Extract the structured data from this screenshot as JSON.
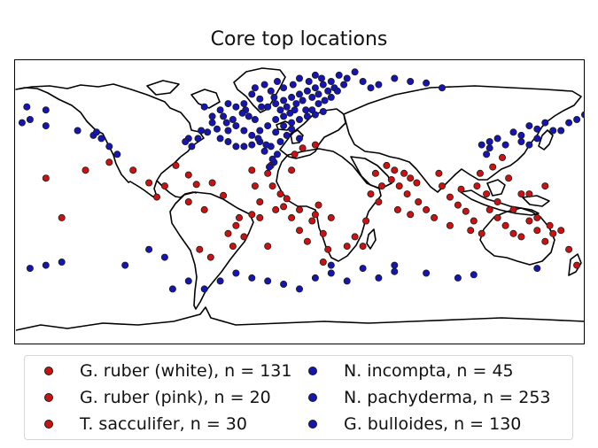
{
  "title": "Core top locations",
  "colors": {
    "warm": "#cc1111",
    "cold": "#1515b5",
    "edge": "#1a1a1a"
  },
  "legend": [
    {
      "label": "G. ruber (white), n = 131",
      "color": "#cc1111"
    },
    {
      "label": "G. ruber (pink), n = 20",
      "color": "#cc1111"
    },
    {
      "label": "T. sacculifer, n = 30",
      "color": "#cc1111"
    },
    {
      "label": "N. incompta, n = 45",
      "color": "#1515b5"
    },
    {
      "label": "N. pachyderma, n = 253",
      "color": "#1515b5"
    },
    {
      "label": "G. bulloides, n = 130",
      "color": "#1515b5"
    }
  ],
  "chart_data": {
    "type": "scatter",
    "projection": "plate-carree",
    "xlim": [
      -180,
      180
    ],
    "ylim": [
      -90,
      90
    ],
    "series": [
      {
        "name": "G. ruber (white), n = 131",
        "color": "#cc1111",
        "points": [
          [
            -78,
            23
          ],
          [
            -70,
            17
          ],
          [
            -65,
            11
          ],
          [
            -55,
            12
          ],
          [
            -48,
            4
          ],
          [
            -38,
            -10
          ],
          [
            -35,
            -22
          ],
          [
            -42,
            -28
          ],
          [
            -56,
            -35
          ],
          [
            -63,
            -30
          ],
          [
            -20,
            18
          ],
          [
            -17,
            10
          ],
          [
            -18,
            23
          ],
          [
            -12,
            5
          ],
          [
            -10,
            -3
          ],
          [
            -5,
            -10
          ],
          [
            0,
            -18
          ],
          [
            5,
            -25
          ],
          [
            8,
            -12
          ],
          [
            12,
            -2
          ],
          [
            15,
            -20
          ],
          [
            18,
            -30
          ],
          [
            30,
            -28
          ],
          [
            35,
            -22
          ],
          [
            42,
            -12
          ],
          [
            48,
            18
          ],
          [
            55,
            23
          ],
          [
            60,
            20
          ],
          [
            63,
            10
          ],
          [
            66,
            18
          ],
          [
            70,
            15
          ],
          [
            74,
            12
          ],
          [
            88,
            18
          ],
          [
            90,
            10
          ],
          [
            95,
            3
          ],
          [
            100,
            -2
          ],
          [
            105,
            -6
          ],
          [
            110,
            -12
          ],
          [
            112,
            10
          ],
          [
            114,
            18
          ],
          [
            118,
            5
          ],
          [
            120,
            -5
          ],
          [
            125,
            -10
          ],
          [
            130,
            -15
          ],
          [
            135,
            -20
          ],
          [
            140,
            -22
          ],
          [
            145,
            -12
          ],
          [
            150,
            -18
          ],
          [
            155,
            -25
          ],
          [
            160,
            -20
          ],
          [
            170,
            -30
          ],
          [
            -135,
            20
          ],
          [
            -120,
            25
          ],
          [
            -105,
            20
          ],
          [
            -95,
            12
          ],
          [
            -90,
            3
          ]
        ]
      },
      {
        "name": "G. ruber (pink), n = 20",
        "color": "#cc1111",
        "points": [
          [
            -30,
            20
          ],
          [
            -28,
            10
          ],
          [
            -25,
            0
          ],
          [
            -30,
            -8
          ],
          [
            -20,
            -28
          ],
          [
            -5,
            20
          ],
          [
            -3,
            30
          ],
          [
            2,
            34
          ],
          [
            10,
            36
          ],
          [
            15,
            -38
          ],
          [
            40,
            -28
          ],
          [
            52,
            10
          ],
          [
            58,
            14
          ],
          [
            68,
            5
          ],
          [
            80,
            -5
          ],
          [
            122,
            22
          ],
          [
            128,
            28
          ],
          [
            132,
            15
          ],
          [
            140,
            5
          ],
          [
            155,
            10
          ]
        ]
      },
      {
        "name": "T. sacculifer, n = 30",
        "color": "#cc1111",
        "points": [
          [
            -85,
            10
          ],
          [
            -70,
            0
          ],
          [
            -60,
            -5
          ],
          [
            -45,
            -20
          ],
          [
            -40,
            -15
          ],
          [
            -25,
            -10
          ],
          [
            -15,
            -5
          ],
          [
            -8,
            2
          ],
          [
            0,
            -5
          ],
          [
            10,
            -8
          ],
          [
            20,
            -10
          ],
          [
            45,
            5
          ],
          [
            50,
            0
          ],
          [
            62,
            -5
          ],
          [
            70,
            -8
          ],
          [
            75,
            0
          ],
          [
            85,
            -10
          ],
          [
            95,
            -15
          ],
          [
            102,
            8
          ],
          [
            108,
            -18
          ],
          [
            115,
            -20
          ],
          [
            125,
            0
          ],
          [
            135,
            -5
          ],
          [
            145,
            5
          ],
          [
            150,
            -10
          ],
          [
            158,
            -15
          ],
          [
            165,
            -18
          ],
          [
            175,
            -40
          ],
          [
            -150,
            -10
          ],
          [
            -160,
            15
          ]
        ]
      },
      {
        "name": "N. incompta, n = 45",
        "color": "#1515b5",
        "points": [
          [
            -70,
            40
          ],
          [
            -62,
            45
          ],
          [
            -55,
            50
          ],
          [
            -45,
            45
          ],
          [
            -40,
            48
          ],
          [
            -35,
            45
          ],
          [
            -30,
            42
          ],
          [
            -25,
            38
          ],
          [
            -15,
            44
          ],
          [
            -10,
            48
          ],
          [
            -5,
            46
          ],
          [
            0,
            40
          ],
          [
            140,
            42
          ],
          [
            145,
            48
          ],
          [
            150,
            46
          ],
          [
            155,
            50
          ],
          [
            160,
            45
          ],
          [
            170,
            50
          ],
          [
            175,
            52
          ],
          [
            180,
            55
          ],
          [
            -170,
            52
          ],
          [
            -160,
            48
          ],
          [
            -140,
            45
          ],
          [
            -130,
            42
          ],
          [
            120,
            38
          ],
          [
            125,
            40
          ],
          [
            130,
            36
          ],
          [
            135,
            44
          ],
          [
            60,
            -40
          ],
          [
            80,
            -45
          ],
          [
            100,
            -48
          ],
          [
            -20,
            -50
          ],
          [
            -10,
            -52
          ],
          [
            0,
            -55
          ],
          [
            10,
            -48
          ],
          [
            20,
            -45
          ],
          [
            30,
            -50
          ],
          [
            40,
            -42
          ],
          [
            50,
            -48
          ],
          [
            -60,
            -55
          ],
          [
            -50,
            -50
          ],
          [
            -40,
            -45
          ],
          [
            -30,
            -48
          ],
          [
            -80,
            -55
          ],
          [
            -70,
            -50
          ]
        ]
      },
      {
        "name": "N. pachyderma, n = 253",
        "color": "#1515b5",
        "points": [
          [
            -20,
            60
          ],
          [
            -15,
            62
          ],
          [
            -10,
            64
          ],
          [
            -5,
            66
          ],
          [
            0,
            68
          ],
          [
            5,
            70
          ],
          [
            10,
            72
          ],
          [
            15,
            74
          ],
          [
            20,
            76
          ],
          [
            -25,
            65
          ],
          [
            -30,
            68
          ],
          [
            -35,
            62
          ],
          [
            -12,
            58
          ],
          [
            -8,
            60
          ],
          [
            -2,
            62
          ],
          [
            2,
            64
          ],
          [
            8,
            66
          ],
          [
            12,
            68
          ],
          [
            18,
            70
          ],
          [
            22,
            72
          ],
          [
            -18,
            70
          ],
          [
            -10,
            72
          ],
          [
            -4,
            74
          ],
          [
            6,
            76
          ],
          [
            14,
            78
          ],
          [
            -28,
            72
          ],
          [
            -22,
            74
          ],
          [
            -14,
            76
          ],
          [
            0,
            78
          ],
          [
            10,
            80
          ],
          [
            20,
            66
          ],
          [
            24,
            70
          ],
          [
            28,
            74
          ],
          [
            -6,
            56
          ],
          [
            4,
            58
          ],
          [
            12,
            62
          ],
          [
            16,
            64
          ],
          [
            -16,
            66
          ],
          [
            -24,
            60
          ],
          [
            -34,
            58
          ],
          [
            -40,
            60
          ],
          [
            -45,
            62
          ],
          [
            30,
            78
          ],
          [
            25,
            80
          ],
          [
            35,
            82
          ],
          [
            40,
            76
          ],
          [
            45,
            72
          ],
          [
            -50,
            58
          ],
          [
            -55,
            54
          ],
          [
            -60,
            60
          ],
          [
            50,
            74
          ],
          [
            60,
            78
          ],
          [
            70,
            76
          ],
          [
            80,
            75
          ],
          [
            90,
            72
          ],
          [
            -160,
            58
          ],
          [
            -172,
            60
          ],
          [
            -175,
            50
          ]
        ]
      },
      {
        "name": "G. bulloides, n = 130",
        "color": "#1515b5",
        "points": [
          [
            -50,
            40
          ],
          [
            -45,
            38
          ],
          [
            -40,
            35
          ],
          [
            -35,
            35
          ],
          [
            -30,
            36
          ],
          [
            -25,
            45
          ],
          [
            -20,
            48
          ],
          [
            -15,
            52
          ],
          [
            -10,
            54
          ],
          [
            -5,
            50
          ],
          [
            0,
            52
          ],
          [
            5,
            54
          ],
          [
            -8,
            42
          ],
          [
            -12,
            38
          ],
          [
            -18,
            35
          ],
          [
            -22,
            32
          ],
          [
            -14,
            30
          ],
          [
            -16,
            25
          ],
          [
            -19,
            22
          ],
          [
            -17,
            27
          ],
          [
            -21,
            36
          ],
          [
            -26,
            40
          ],
          [
            10,
            55
          ],
          [
            15,
            57
          ],
          [
            8,
            58
          ],
          [
            -3,
            58
          ],
          [
            -28,
            52
          ],
          [
            -32,
            54
          ],
          [
            -36,
            56
          ],
          [
            -42,
            52
          ],
          [
            -46,
            50
          ],
          [
            -48,
            54
          ],
          [
            -52,
            46
          ],
          [
            -58,
            44
          ],
          [
            -64,
            40
          ],
          [
            -68,
            35
          ],
          [
            -72,
            38
          ],
          [
            -120,
            35
          ],
          [
            -125,
            40
          ],
          [
            -128,
            44
          ],
          [
            -115,
            30
          ],
          [
            115,
            36
          ],
          [
            118,
            30
          ],
          [
            120,
            34
          ],
          [
            150,
            40
          ],
          [
            145,
            36
          ],
          [
            140,
            38
          ],
          [
            165,
            45
          ],
          [
            20,
            -40
          ],
          [
            60,
            -44
          ],
          [
            110,
            -46
          ],
          [
            150,
            -42
          ],
          [
            -95,
            -30
          ],
          [
            -85,
            -35
          ],
          [
            -110,
            -40
          ],
          [
            -150,
            -38
          ],
          [
            -160,
            -40
          ],
          [
            -170,
            -42
          ]
        ]
      }
    ]
  }
}
